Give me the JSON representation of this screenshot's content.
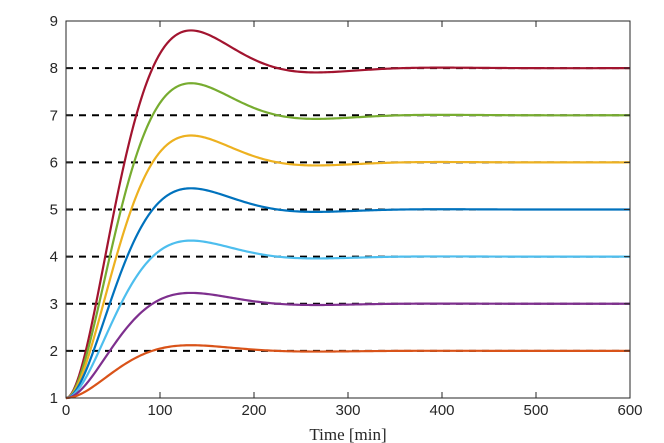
{
  "chart_data": {
    "type": "line",
    "title": "",
    "xlabel": "Time [min]",
    "ylabel": "",
    "xlim": [
      0,
      600
    ],
    "ylim": [
      1,
      9
    ],
    "xticks": [
      0,
      100,
      200,
      300,
      400,
      500,
      600
    ],
    "yticks": [
      1,
      2,
      3,
      4,
      5,
      6,
      7,
      8,
      9
    ],
    "grid": false,
    "setpoint_style": "black dashed",
    "response_model": "second-order step response from y=1 at t=0",
    "peak_time_min": 133,
    "series": [
      {
        "name": "setpoint 8",
        "setpoint": 8,
        "peak": 8.8,
        "color": "#A2142F"
      },
      {
        "name": "setpoint 7",
        "setpoint": 7,
        "peak": 7.68,
        "color": "#77AC30"
      },
      {
        "name": "setpoint 6",
        "setpoint": 6,
        "peak": 6.57,
        "color": "#EDB120"
      },
      {
        "name": "setpoint 5",
        "setpoint": 5,
        "peak": 5.45,
        "color": "#0072BD"
      },
      {
        "name": "setpoint 4",
        "setpoint": 4,
        "peak": 4.34,
        "color": "#4DBEEE"
      },
      {
        "name": "setpoint 3",
        "setpoint": 3,
        "peak": 3.23,
        "color": "#7E2F8E"
      },
      {
        "name": "setpoint 2",
        "setpoint": 2,
        "peak": 2.12,
        "color": "#D95319"
      }
    ]
  }
}
